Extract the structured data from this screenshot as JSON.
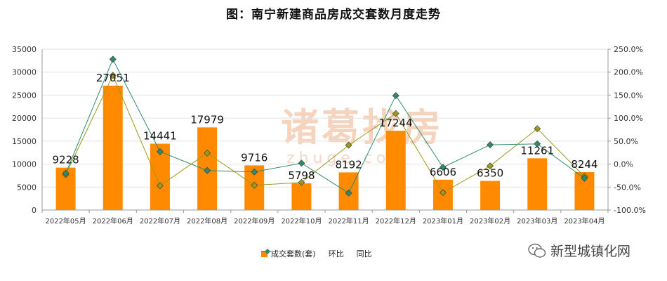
{
  "title": "图：南宁新建商品房成交套数月度走势",
  "watermark": {
    "text": "新型城镇化网",
    "icon": "wechat-icon"
  },
  "background_watermark": {
    "brand": "诸葛找房",
    "site": "zhuge.com"
  },
  "colors": {
    "bar": "#ff8a00",
    "hb": "#9a9a1e",
    "tb": "#2e8b6e",
    "grid": "#e2e2e2",
    "axis": "#999999"
  },
  "chart_data": {
    "type": "bar",
    "title": "图：南宁新建商品房成交套数月度走势",
    "categories": [
      "2022年05月",
      "2022年06月",
      "2022年07月",
      "2022年08月",
      "2022年09月",
      "2022年10月",
      "2022年11月",
      "2022年12月",
      "2023年01月",
      "2023年02月",
      "2023年03月",
      "2023年04月"
    ],
    "series": [
      {
        "name": "成交套数(套)",
        "type": "bar",
        "axis": "left",
        "values": [
          9228,
          27051,
          14441,
          17979,
          9716,
          5798,
          8192,
          17244,
          6606,
          6350,
          11261,
          8244
        ]
      },
      {
        "name": "环比",
        "type": "line",
        "axis": "right",
        "values": [
          -23,
          193,
          -47,
          24,
          -46,
          -40,
          41,
          110,
          -62,
          -4,
          77,
          -27
        ]
      },
      {
        "name": "同比",
        "type": "line",
        "axis": "right",
        "values": [
          -20,
          228,
          27,
          -14,
          -17,
          2,
          -63,
          149,
          -7,
          42,
          44,
          -31
        ]
      }
    ],
    "yleft": {
      "min": 0,
      "max": 35000,
      "ticks": [
        0,
        5000,
        10000,
        15000,
        20000,
        25000,
        30000,
        35000
      ]
    },
    "yright": {
      "min": -100,
      "max": 250,
      "ticks": [
        -100,
        -50,
        0,
        50,
        100,
        150,
        200,
        250
      ],
      "tick_labels": [
        "-100.0%",
        "-50.0%",
        "0.0%",
        "50.0%",
        "100.0%",
        "150.0%",
        "200.0%",
        "250.0%"
      ]
    },
    "grid": true,
    "legend": "bottom-center"
  }
}
